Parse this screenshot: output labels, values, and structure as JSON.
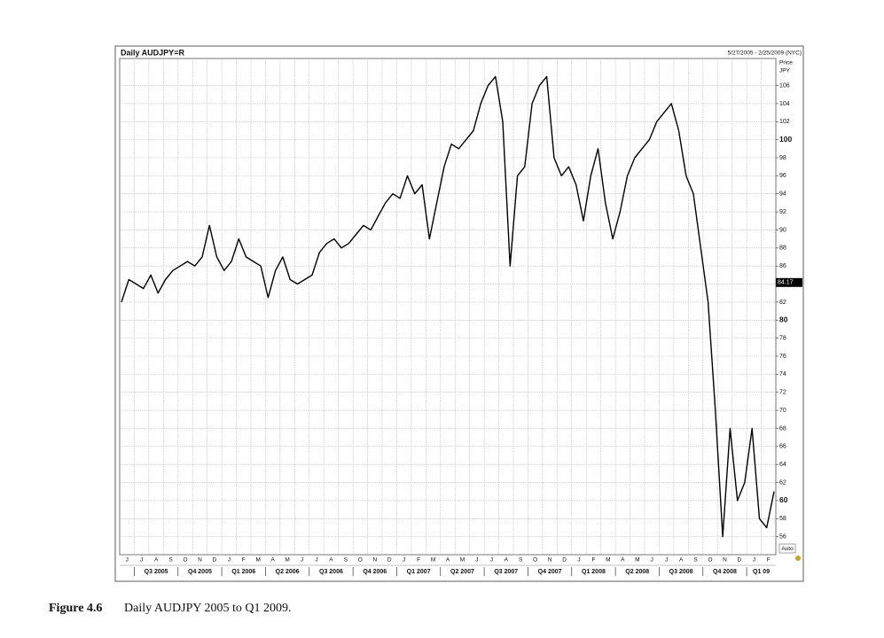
{
  "chart_data": {
    "type": "line",
    "title": "Daily AUDJPY=R",
    "date_range": "5/27/2005 - 2/25/2009 (NYC)",
    "y_label": "Price",
    "y_unit": "JPY",
    "scale_button": "Auto",
    "months": [
      "J",
      "J",
      "A",
      "S",
      "O",
      "N",
      "D",
      "J",
      "F",
      "M",
      "A",
      "M",
      "J",
      "J",
      "A",
      "S",
      "O",
      "N",
      "D",
      "J",
      "F",
      "M",
      "A",
      "M",
      "J",
      "J",
      "A",
      "S",
      "O",
      "N",
      "D",
      "J",
      "F",
      "M",
      "A",
      "M",
      "J",
      "J",
      "A",
      "S",
      "O",
      "N",
      "D",
      "J",
      "F"
    ],
    "quarters": [
      "Q3 2005",
      "Q4 2005",
      "Q1 2006",
      "Q2 2006",
      "Q3 2006",
      "Q4 2006",
      "Q1 2007",
      "Q2 2007",
      "Q3 2007",
      "Q4 2007",
      "Q1 2008",
      "Q2 2008",
      "Q3 2008",
      "Q4 2008",
      "Q1 09"
    ],
    "values": [
      82,
      84.5,
      84,
      83.5,
      85,
      83,
      84.5,
      85.5,
      86,
      86.5,
      86,
      87,
      90.5,
      87,
      85.5,
      86.5,
      89,
      87,
      86.5,
      86,
      82.5,
      85.5,
      87,
      84.5,
      84,
      84.5,
      85,
      87.5,
      88.5,
      89,
      88,
      88.5,
      89.5,
      90.5,
      90,
      91.5,
      93,
      94,
      93.5,
      96,
      94,
      95,
      89,
      93,
      97,
      99.5,
      99,
      100,
      101,
      104,
      106,
      107,
      102,
      86,
      96,
      97,
      104,
      106,
      107,
      98,
      96,
      97,
      95,
      91,
      96,
      99,
      93,
      89,
      92,
      96,
      98,
      99,
      100,
      102,
      103,
      104,
      101,
      96,
      94,
      88,
      82,
      70,
      56,
      68,
      60,
      62,
      68,
      58,
      57,
      61
    ],
    "color": "#000000",
    "ylim": [
      54,
      109
    ],
    "yticks": [
      56,
      58,
      60,
      62,
      64,
      66,
      68,
      70,
      72,
      74,
      76,
      78,
      80,
      82,
      84,
      86,
      88,
      90,
      92,
      94,
      96,
      98,
      100,
      102,
      104,
      106
    ],
    "grid": true,
    "last_value": 84.17
  },
  "caption": {
    "label": "Figure 4.6",
    "text": "Daily AUDJPY 2005 to Q1 2009."
  }
}
